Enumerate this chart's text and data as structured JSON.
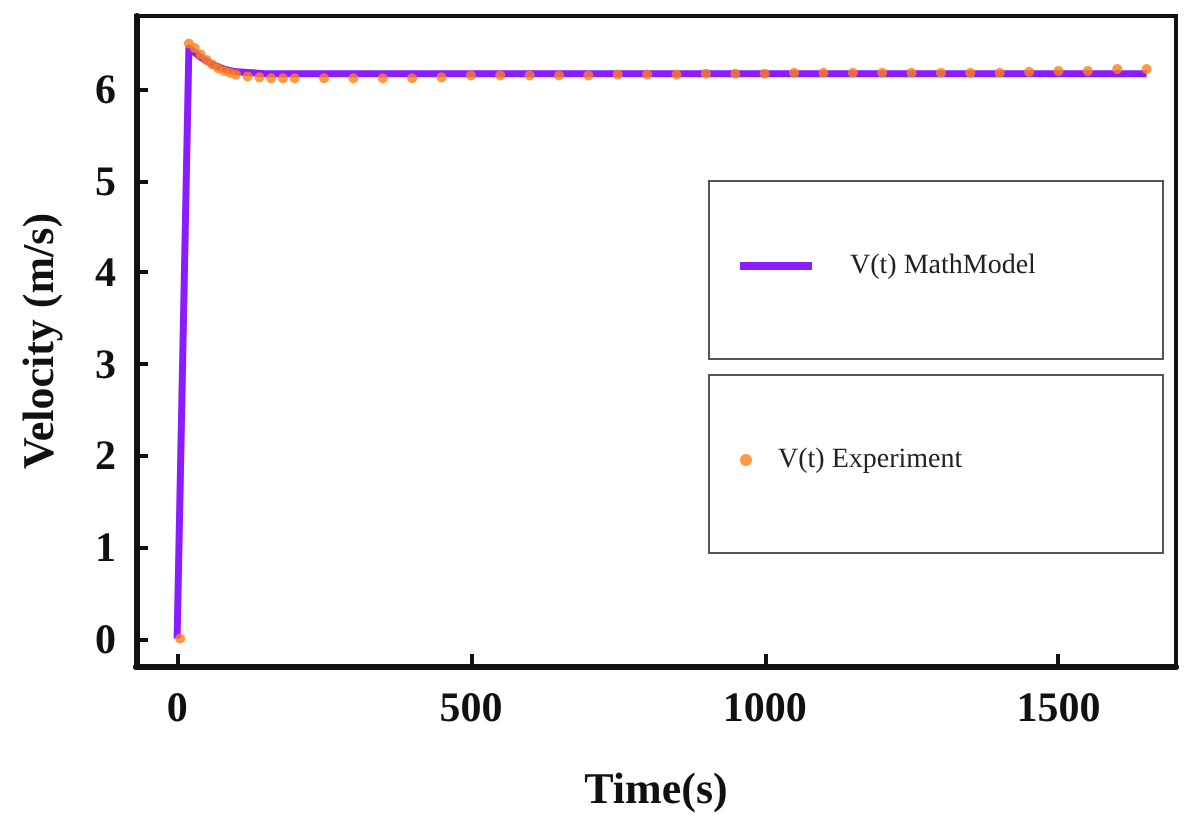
{
  "chart_data": {
    "type": "line",
    "xlabel": "Time(s)",
    "ylabel": "Velocity (m/s)",
    "xlim": [
      -70,
      1700
    ],
    "xticks": [
      0,
      500,
      1000,
      1500
    ],
    "ylim": [
      -0.3,
      6.8
    ],
    "yticks": [
      0,
      1,
      2,
      3,
      4,
      5,
      6
    ],
    "grid": false,
    "legend": "right",
    "series": [
      {
        "name": "V(t) MathModel",
        "marker": "none",
        "color": "#8a1cff",
        "x": [
          0,
          20,
          40,
          60,
          80,
          100,
          150,
          200,
          1650
        ],
        "values": [
          0,
          6.45,
          6.35,
          6.27,
          6.22,
          6.19,
          6.17,
          6.17,
          6.17
        ]
      },
      {
        "name": "V(t) Experiment",
        "type": "scatter",
        "marker": "circle",
        "color": "#ff7f1a",
        "x": [
          5,
          20,
          30,
          40,
          50,
          60,
          70,
          80,
          90,
          100,
          120,
          140,
          160,
          180,
          200,
          250,
          300,
          350,
          400,
          450,
          500,
          550,
          600,
          650,
          700,
          750,
          800,
          850,
          900,
          950,
          1000,
          1050,
          1100,
          1150,
          1200,
          1250,
          1300,
          1350,
          1400,
          1450,
          1500,
          1550,
          1600,
          1650
        ],
        "values": [
          0,
          6.5,
          6.45,
          6.38,
          6.32,
          6.27,
          6.23,
          6.2,
          6.18,
          6.16,
          6.14,
          6.13,
          6.12,
          6.12,
          6.12,
          6.12,
          6.12,
          6.12,
          6.12,
          6.13,
          6.15,
          6.15,
          6.15,
          6.15,
          6.15,
          6.16,
          6.16,
          6.16,
          6.17,
          6.17,
          6.17,
          6.18,
          6.18,
          6.18,
          6.18,
          6.18,
          6.18,
          6.18,
          6.18,
          6.19,
          6.2,
          6.2,
          6.22,
          6.22
        ]
      }
    ]
  }
}
